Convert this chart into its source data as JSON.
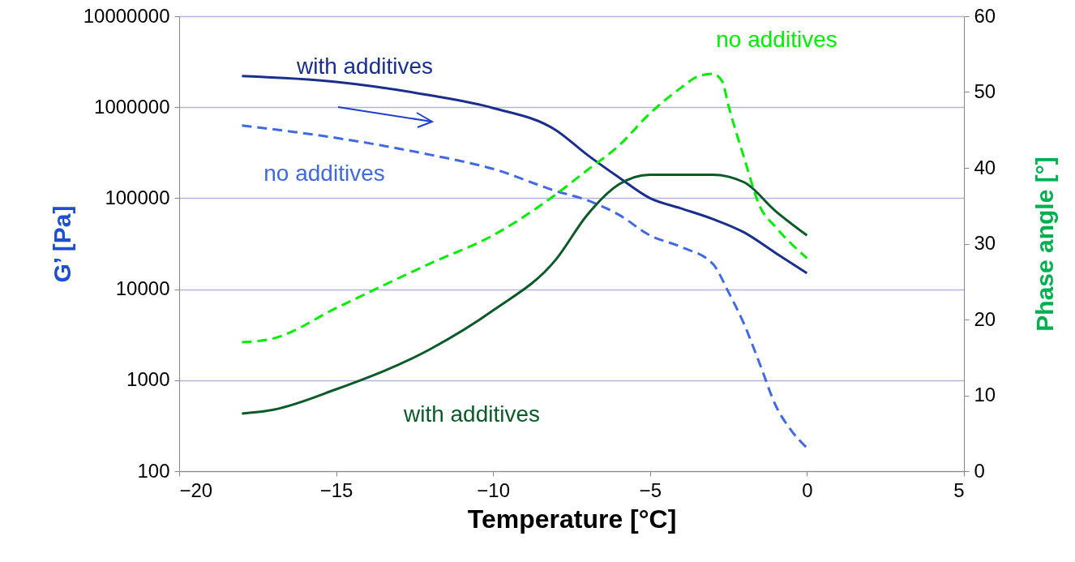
{
  "chart_data": {
    "type": "line",
    "xlabel": "Temperature [°C]",
    "ylabel": "G’ [Pa]",
    "y2label": "Phase angle [°]",
    "xlim": [
      -20,
      5
    ],
    "xticks": [
      -20,
      -15,
      -10,
      -5,
      0,
      5
    ],
    "ylim": [
      100,
      10000000
    ],
    "yticks": [
      100,
      1000,
      10000,
      100000,
      1000000,
      10000000
    ],
    "y2lim": [
      0,
      60
    ],
    "y2ticks": [
      0,
      10,
      20,
      30,
      40,
      50,
      60
    ],
    "log": "y",
    "grid": "y",
    "series": [
      {
        "name": "with additives",
        "color": "#1a2f8c",
        "axis": "y",
        "line_style": "solid",
        "x": [
          -18,
          -15,
          -12,
          -10,
          -8,
          -7,
          -6,
          -5,
          -4,
          -3,
          -2,
          -1,
          0
        ],
        "values": [
          2200000,
          1900000,
          1350000,
          980000,
          560000,
          300000,
          170000,
          100000,
          77000,
          59000,
          42000,
          25000,
          15000
        ]
      },
      {
        "name": "no additives",
        "color": "#4169e1",
        "axis": "y",
        "line_style": "dashed",
        "x": [
          -18,
          -15,
          -12,
          -10,
          -8,
          -7,
          -6,
          -5,
          -4,
          -3,
          -2.5,
          -2,
          -1.5,
          -1,
          -0.5,
          0
        ],
        "values": [
          630000,
          460000,
          300000,
          210000,
          120000,
          95000,
          66000,
          39000,
          29000,
          19000,
          9300,
          4100,
          1500,
          530,
          280,
          180
        ]
      },
      {
        "name": "no additives",
        "color": "#00ee00",
        "axis": "y2",
        "line_style": "dashed",
        "x": [
          -18,
          -17,
          -15,
          -12,
          -10,
          -8,
          -7,
          -6,
          -5,
          -4,
          -3.5,
          -3,
          -2.7,
          -2.5,
          -2,
          -1.5,
          -1,
          -0.5,
          0
        ],
        "values": [
          17,
          17.5,
          21.5,
          27.4,
          31.1,
          36.5,
          39.7,
          42.9,
          47.2,
          50.6,
          52,
          52.4,
          51.4,
          48.2,
          41.3,
          34.9,
          32.2,
          30,
          28.1
        ]
      },
      {
        "name": "with additives",
        "color": "#0b5a2a",
        "axis": "y2",
        "line_style": "solid",
        "x": [
          -18,
          -17,
          -15,
          -12,
          -10,
          -8,
          -7,
          -6,
          -5,
          -4,
          -3,
          -2,
          -1,
          0
        ],
        "values": [
          7.6,
          8.1,
          10.8,
          16.1,
          21.2,
          27.9,
          33.8,
          37.8,
          39.1,
          39.1,
          39.1,
          38.1,
          34.3,
          31.1
        ]
      }
    ]
  }
}
